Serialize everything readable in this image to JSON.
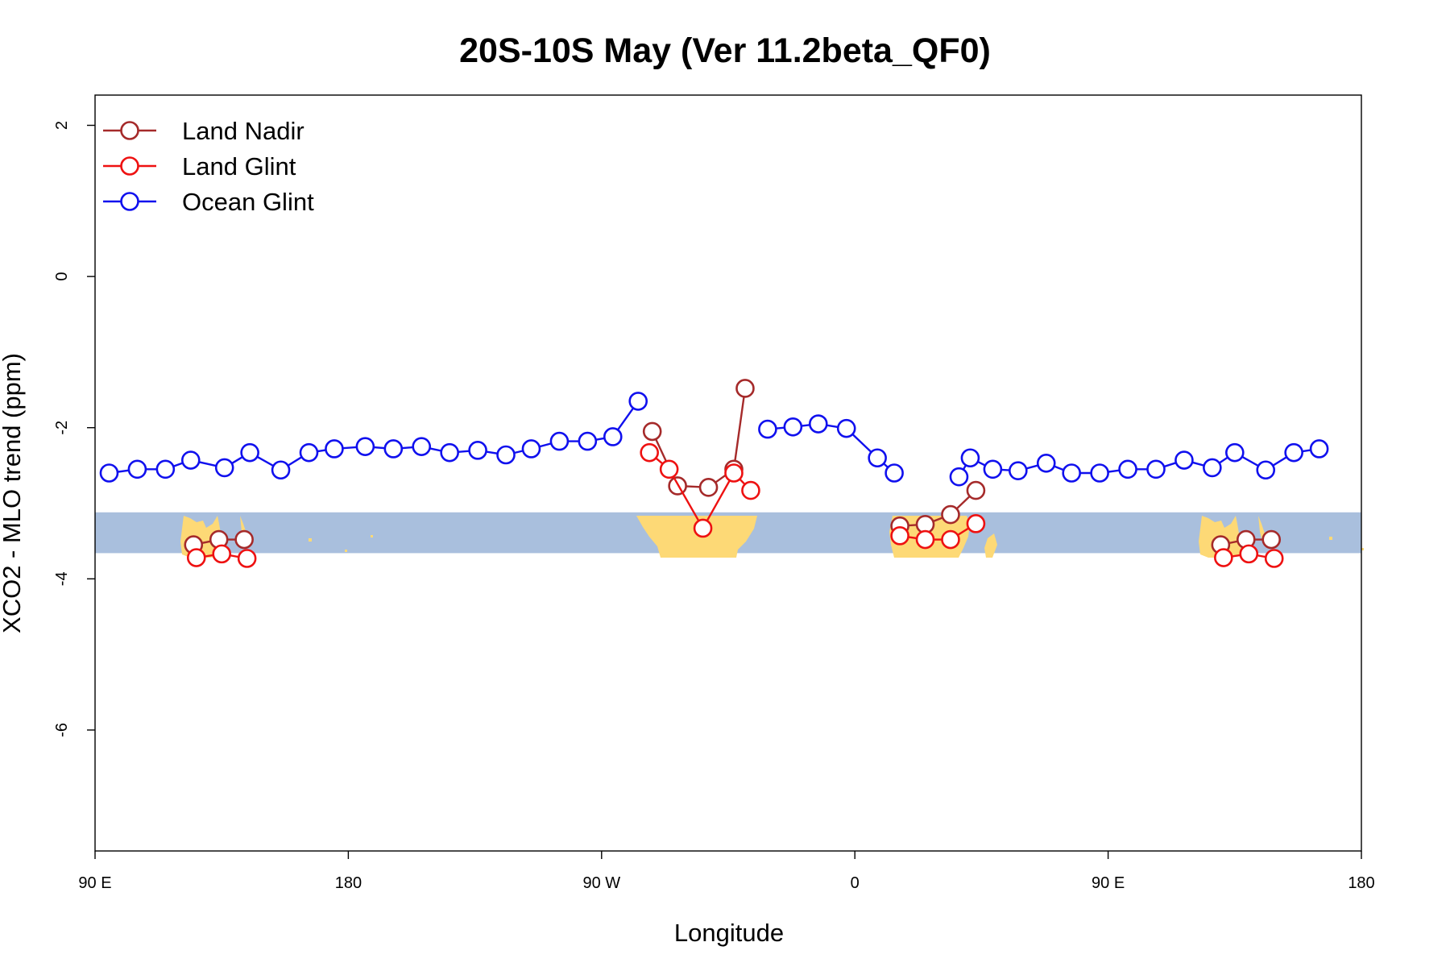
{
  "chart_data": {
    "type": "line",
    "title": "20S-10S May (Ver 11.2beta_QF0)",
    "xlabel": "Longitude",
    "ylabel": "XCO2 - MLO trend (ppm)",
    "xlim": [
      90,
      540
    ],
    "ylim": [
      -7.6,
      2.4
    ],
    "x_ticks": [
      {
        "value": 90,
        "label": "90 E"
      },
      {
        "value": 180,
        "label": "180"
      },
      {
        "value": 270,
        "label": "90 W"
      },
      {
        "value": 360,
        "label": "0"
      },
      {
        "value": 450,
        "label": "90 E"
      },
      {
        "value": 540,
        "label": "180"
      }
    ],
    "y_ticks": [
      {
        "value": 2,
        "label": "2"
      },
      {
        "value": 0,
        "label": "0"
      },
      {
        "value": -2,
        "label": "-2"
      },
      {
        "value": -4,
        "label": "-4"
      },
      {
        "value": -6,
        "label": "-6"
      }
    ],
    "legend_position": "top-left",
    "map_strip": {
      "y_top": -3.12,
      "y_bottom": -3.66,
      "ocean_color": "#a9bfdd",
      "land_color": "#fdd976"
    },
    "series": [
      {
        "name": "Land Nadir",
        "color": "#a52a2a",
        "segments": [
          [
            [
              125,
              -3.55
            ],
            [
              134,
              -3.48
            ],
            [
              143,
              -3.48
            ]
          ],
          [
            [
              288,
              -2.05
            ],
            [
              297,
              -2.77
            ],
            [
              308,
              -2.79
            ],
            [
              317,
              -2.55
            ],
            [
              321,
              -1.48
            ]
          ],
          [
            [
              376,
              -3.3
            ],
            [
              385,
              -3.28
            ],
            [
              394,
              -3.15
            ],
            [
              403,
              -2.83
            ]
          ],
          [
            [
              490,
              -3.55
            ],
            [
              499,
              -3.48
            ],
            [
              508,
              -3.48
            ]
          ]
        ]
      },
      {
        "name": "Land Glint",
        "color": "#ee1111",
        "segments": [
          [
            [
              126,
              -3.72
            ],
            [
              135,
              -3.67
            ],
            [
              144,
              -3.73
            ]
          ],
          [
            [
              287,
              -2.33
            ],
            [
              294,
              -2.55
            ],
            [
              306,
              -3.33
            ],
            [
              317,
              -2.6
            ],
            [
              323,
              -2.83
            ]
          ],
          [
            [
              376,
              -3.43
            ],
            [
              385,
              -3.48
            ],
            [
              394,
              -3.48
            ],
            [
              403,
              -3.27
            ]
          ],
          [
            [
              491,
              -3.72
            ],
            [
              500,
              -3.67
            ],
            [
              509,
              -3.73
            ]
          ]
        ]
      },
      {
        "name": "Ocean Glint",
        "color": "#1010ee",
        "segments": [
          [
            [
              95,
              -2.6
            ],
            [
              105,
              -2.55
            ],
            [
              115,
              -2.55
            ],
            [
              124,
              -2.43
            ],
            [
              136,
              -2.53
            ],
            [
              145,
              -2.33
            ],
            [
              156,
              -2.56
            ],
            [
              166,
              -2.33
            ],
            [
              175,
              -2.28
            ],
            [
              186,
              -2.25
            ],
            [
              196,
              -2.28
            ],
            [
              206,
              -2.25
            ],
            [
              216,
              -2.33
            ],
            [
              226,
              -2.3
            ],
            [
              236,
              -2.36
            ],
            [
              245,
              -2.28
            ],
            [
              255,
              -2.18
            ],
            [
              265,
              -2.18
            ],
            [
              274,
              -2.12
            ],
            [
              283,
              -1.65
            ]
          ],
          [
            [
              329,
              -2.02
            ],
            [
              338,
              -1.99
            ],
            [
              347,
              -1.95
            ],
            [
              357,
              -2.01
            ],
            [
              368,
              -2.4
            ],
            [
              374,
              -2.6
            ]
          ],
          [
            [
              397,
              -2.65
            ],
            [
              401,
              -2.4
            ],
            [
              409,
              -2.55
            ],
            [
              418,
              -2.57
            ],
            [
              428,
              -2.47
            ],
            [
              437,
              -2.6
            ],
            [
              447,
              -2.6
            ],
            [
              457,
              -2.55
            ],
            [
              467,
              -2.55
            ],
            [
              477,
              -2.43
            ],
            [
              487,
              -2.53
            ],
            [
              495,
              -2.33
            ],
            [
              506,
              -2.56
            ],
            [
              516,
              -2.33
            ],
            [
              525,
              -2.28
            ]
          ]
        ]
      }
    ]
  }
}
